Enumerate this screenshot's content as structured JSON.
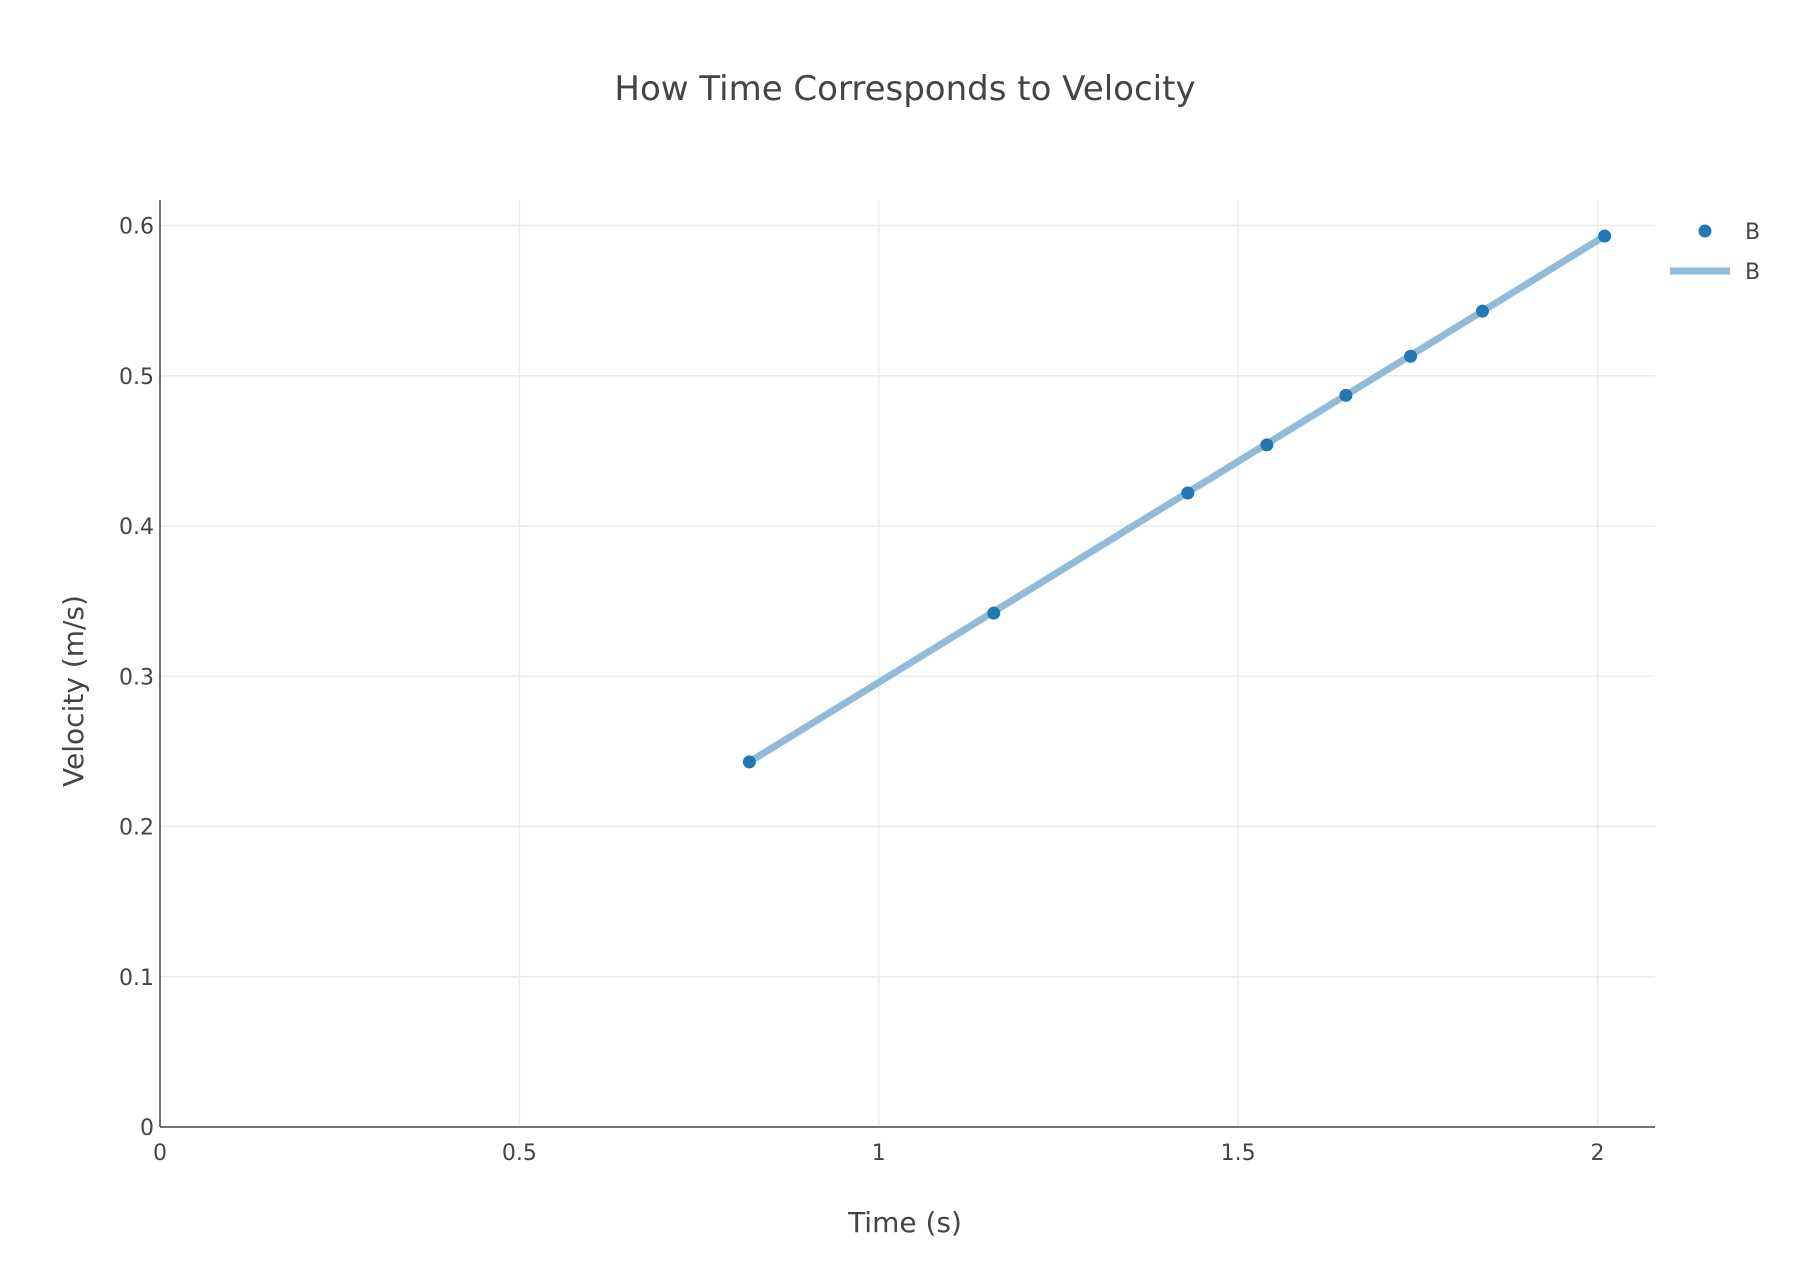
{
  "chart_data": {
    "type": "scatter",
    "title": "How Time Corresponds to Velocity",
    "xlabel": "Time (s)",
    "ylabel": "Velocity (m/s)",
    "xlim": [
      0,
      2.08
    ],
    "ylim": [
      0,
      0.617
    ],
    "x_ticks": [
      0,
      0.5,
      1,
      1.5,
      2
    ],
    "x_tick_labels": [
      "0",
      "0.5",
      "1",
      "1.5",
      "2"
    ],
    "y_ticks": [
      0,
      0.1,
      0.2,
      0.3,
      0.4,
      0.5,
      0.6
    ],
    "y_tick_labels": [
      "0",
      "0.1",
      "0.2",
      "0.3",
      "0.4",
      "0.5",
      "0.6"
    ],
    "grid": true,
    "legend_position": "top-right",
    "series": [
      {
        "name": "B",
        "mode": "markers",
        "color": "#1f77b4",
        "x": [
          0.82,
          1.16,
          1.43,
          1.54,
          1.65,
          1.74,
          1.84,
          2.01
        ],
        "y": [
          0.243,
          0.342,
          0.422,
          0.454,
          0.487,
          0.513,
          0.543,
          0.593
        ]
      },
      {
        "name": "B",
        "mode": "line",
        "color": "#91bbd9",
        "x": [
          0.82,
          2.01
        ],
        "y": [
          0.243,
          0.593
        ]
      }
    ]
  }
}
